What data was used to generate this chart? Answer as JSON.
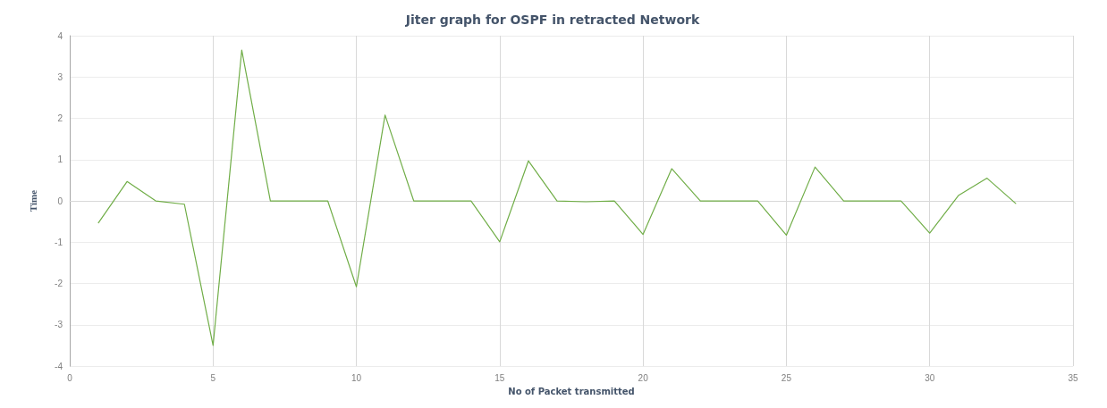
{
  "chart_data": {
    "type": "line",
    "title": "Jiter graph for OSPF in retracted Network",
    "xlabel": "No of Packet transmitted",
    "ylabel": "Time",
    "x": [
      1,
      2,
      3,
      4,
      5,
      6,
      7,
      8,
      9,
      10,
      11,
      12,
      13,
      14,
      15,
      16,
      17,
      18,
      19,
      20,
      21,
      22,
      23,
      24,
      25,
      26,
      27,
      28,
      29,
      30,
      31,
      32,
      33
    ],
    "series": [
      {
        "color": "#70ad47",
        "values": [
          -0.53,
          0.47,
          0,
          -0.08,
          -3.5,
          3.65,
          0,
          0,
          0,
          -2.08,
          2.08,
          0,
          0,
          0,
          -0.99,
          0.97,
          0,
          -0.02,
          0,
          -0.81,
          0.78,
          0,
          0,
          0,
          -0.83,
          0.82,
          0,
          0,
          0,
          -0.78,
          0.13,
          0.55,
          -0.06
        ]
      }
    ],
    "xlim": [
      0,
      35
    ],
    "xticks": [
      0,
      5,
      10,
      15,
      20,
      25,
      30,
      35
    ],
    "ylim": [
      -4,
      4
    ],
    "yticks": [
      -4,
      -3,
      -2,
      -1,
      0,
      1,
      2,
      3,
      4
    ],
    "grid": true,
    "marker": "none",
    "line_style": "solid"
  }
}
